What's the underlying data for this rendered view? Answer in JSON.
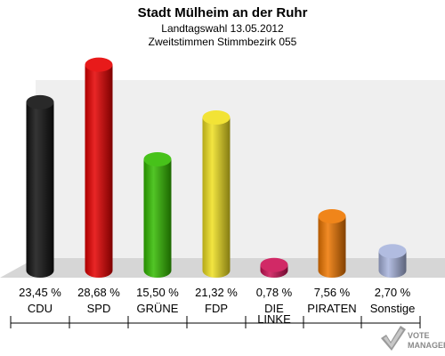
{
  "header": {
    "title": "Stadt Mülheim an der Ruhr",
    "subtitle1": "Landtagswahl 13.05.2012",
    "subtitle2": "Zweitstimmen Stimmbezirk 055"
  },
  "watermark": {
    "line1": "VOTE",
    "line2": "MANAGER"
  },
  "chart_data": {
    "type": "bar",
    "title": "Stadt Mülheim an der Ruhr",
    "subtitle": "Landtagswahl 13.05.2012 · Zweitstimmen Stimmbezirk 055",
    "xlabel": "",
    "ylabel": "",
    "grid": false,
    "legend": "none",
    "categories": [
      [
        "CDU"
      ],
      [
        "SPD"
      ],
      [
        "GRÜNE"
      ],
      [
        "FDP"
      ],
      [
        "DIE",
        "LINKE"
      ],
      [
        "PIRATEN"
      ],
      [
        "Sonstige"
      ]
    ],
    "values": [
      23.45,
      28.68,
      15.5,
      21.32,
      0.78,
      7.56,
      2.7
    ],
    "value_labels": [
      "23,45 %",
      "28,68 %",
      "15,50 %",
      "21,32 %",
      "0,78 %",
      "7,56 %",
      "2,70 %"
    ],
    "colors": [
      "#111111",
      "#e50000",
      "#33bb00",
      "#f0e020",
      "#cc1155",
      "#ee7700",
      "#a8b4dd"
    ],
    "ylim": [
      0,
      30
    ]
  }
}
